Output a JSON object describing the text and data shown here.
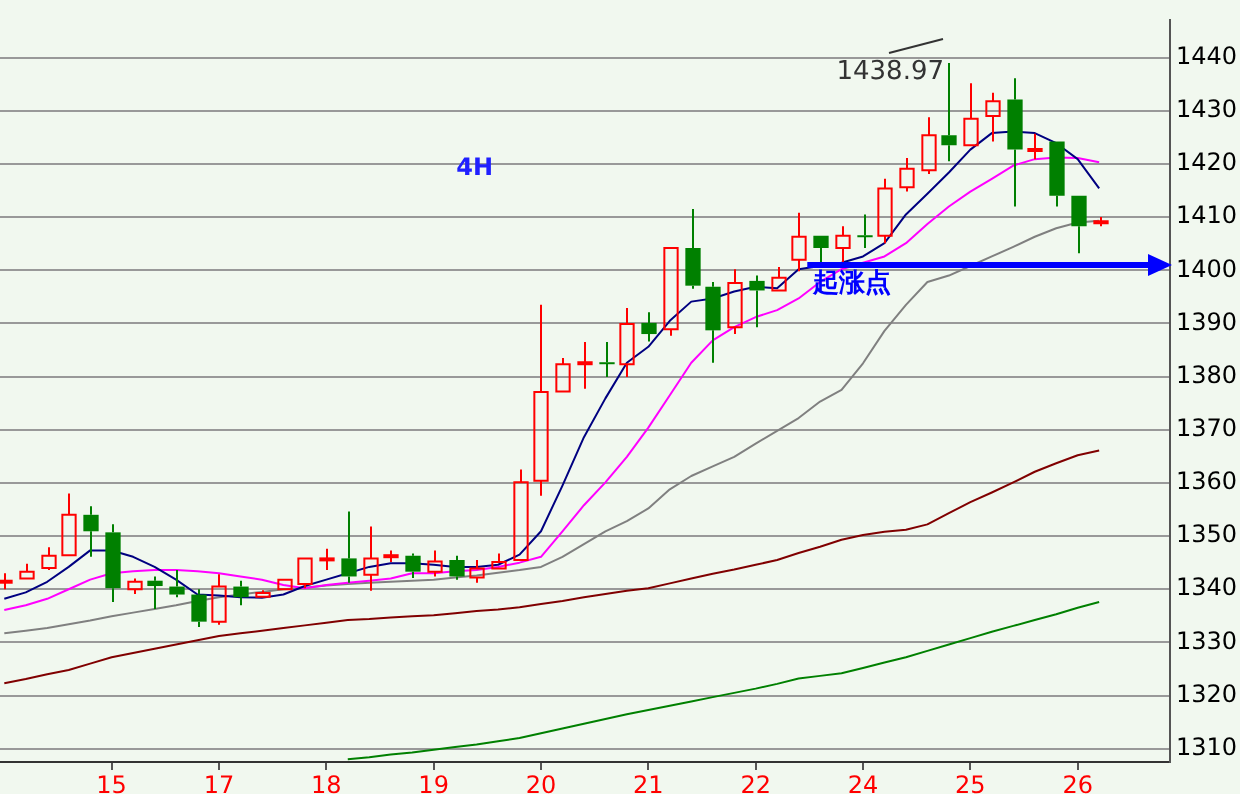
{
  "chart_data": {
    "type": "candlestick",
    "categories": [
      null,
      null,
      null,
      null,
      null,
      "15",
      null,
      null,
      null,
      null,
      "17",
      null,
      null,
      null,
      null,
      "18",
      null,
      null,
      null,
      null,
      "19",
      null,
      null,
      null,
      null,
      "20",
      null,
      null,
      null,
      null,
      "21",
      null,
      null,
      null,
      null,
      "22",
      null,
      null,
      null,
      null,
      "24",
      null,
      null,
      null,
      null,
      "25",
      null,
      null,
      null,
      null,
      "26",
      null
    ],
    "ohlc": [
      [
        1341.5,
        1343.0,
        1340.0,
        1341.6
      ],
      [
        1342.0,
        1344.8,
        1342.0,
        1343.3
      ],
      [
        1344.0,
        1347.9,
        1343.6,
        1346.3
      ],
      [
        1346.4,
        1358.0,
        1346.4,
        1354.0
      ],
      [
        1354.0,
        1355.6,
        1346.1,
        1350.9
      ],
      [
        1350.7,
        1352.2,
        1337.6,
        1340.2
      ],
      [
        1340.0,
        1342.0,
        1339.1,
        1341.4
      ],
      [
        1341.6,
        1342.4,
        1336.3,
        1340.6
      ],
      [
        1340.5,
        1343.6,
        1338.5,
        1339.0
      ],
      [
        1339.0,
        1340.0,
        1332.9,
        1333.9
      ],
      [
        1333.9,
        1342.8,
        1333.3,
        1340.5
      ],
      [
        1340.5,
        1341.6,
        1337.0,
        1338.5
      ],
      [
        1338.6,
        1339.8,
        1338.3,
        1339.3
      ],
      [
        1340.0,
        1341.8,
        1339.8,
        1341.8
      ],
      [
        1341.0,
        1345.8,
        1340.2,
        1345.8
      ],
      [
        1345.6,
        1347.6,
        1343.6,
        1345.8
      ],
      [
        1345.8,
        1354.6,
        1341.2,
        1342.4
      ],
      [
        1342.7,
        1351.8,
        1339.7,
        1345.8
      ],
      [
        1346.2,
        1347.3,
        1345.1,
        1346.4
      ],
      [
        1346.3,
        1346.7,
        1342.1,
        1343.3
      ],
      [
        1343.3,
        1347.3,
        1342.4,
        1345.2
      ],
      [
        1345.5,
        1346.3,
        1341.8,
        1342.4
      ],
      [
        1342.2,
        1345.5,
        1341.2,
        1343.9
      ],
      [
        1343.9,
        1346.7,
        1343.6,
        1345.1
      ],
      [
        1345.5,
        1362.5,
        1345.5,
        1360.1
      ],
      [
        1360.4,
        1393.5,
        1357.6,
        1377.1
      ],
      [
        1377.2,
        1383.5,
        1377.2,
        1382.3
      ],
      [
        1382.4,
        1386.5,
        1377.7,
        1382.7
      ],
      [
        1382.7,
        1386.5,
        1379.9,
        1382.4
      ],
      [
        1382.3,
        1392.9,
        1379.9,
        1389.9
      ],
      [
        1390.1,
        1392.1,
        1386.6,
        1388.0
      ],
      [
        1388.9,
        1404.2,
        1387.7,
        1404.2
      ],
      [
        1404.2,
        1411.5,
        1396.5,
        1397.1
      ],
      [
        1396.9,
        1397.8,
        1382.6,
        1388.7
      ],
      [
        1389.3,
        1400.2,
        1388.0,
        1397.6
      ],
      [
        1398.0,
        1399.0,
        1389.3,
        1396.2
      ],
      [
        1396.2,
        1400.6,
        1396.0,
        1398.6
      ],
      [
        1402.0,
        1410.8,
        1399.8,
        1406.3
      ],
      [
        1406.5,
        1406.5,
        1400.8,
        1404.2
      ],
      [
        1404.2,
        1408.3,
        1400.8,
        1406.5
      ],
      [
        1406.6,
        1410.5,
        1404.2,
        1406.4
      ],
      [
        1406.5,
        1417.2,
        1405.1,
        1415.4
      ],
      [
        1415.6,
        1421.1,
        1414.8,
        1419.1
      ],
      [
        1418.8,
        1428.8,
        1418.1,
        1425.4
      ],
      [
        1425.4,
        1438.97,
        1420.5,
        1423.5
      ],
      [
        1423.5,
        1435.2,
        1423.5,
        1428.5
      ],
      [
        1429.0,
        1433.4,
        1424.2,
        1431.8
      ],
      [
        1432.1,
        1436.1,
        1412.0,
        1422.7
      ],
      [
        1422.6,
        1425.7,
        1420.9,
        1422.8
      ],
      [
        1424.2,
        1424.2,
        1412.0,
        1414.0
      ],
      [
        1414.0,
        1414.0,
        1403.2,
        1408.3
      ],
      [
        1409.0,
        1410.0,
        1408.3,
        1409.2
      ]
    ],
    "series": [
      {
        "type": "line",
        "color": "#000080",
        "values": [
          1338.2,
          1339.4,
          1341.4,
          1344.2,
          1347.3,
          1347.3,
          1346.1,
          1344.2,
          1341.8,
          1339.0,
          1338.8,
          1338.5,
          1338.4,
          1339.0,
          1340.6,
          1341.8,
          1343.0,
          1344.2,
          1344.9,
          1344.9,
          1344.6,
          1344.2,
          1344.2,
          1344.6,
          1346.5,
          1350.9,
          1359.5,
          1368.6,
          1375.9,
          1382.6,
          1385.6,
          1390.5,
          1394.1,
          1394.7,
          1396.0,
          1396.9,
          1396.6,
          1400.2,
          1400.8,
          1401.4,
          1402.6,
          1405.1,
          1410.5,
          1414.4,
          1418.4,
          1422.7,
          1425.8,
          1426.1,
          1425.8,
          1423.9,
          1420.9,
          1415.4
        ]
      },
      {
        "type": "line",
        "color": "#ff00ff",
        "values": [
          1336.1,
          1337.0,
          1338.2,
          1340.0,
          1341.8,
          1343.0,
          1343.4,
          1343.6,
          1343.6,
          1343.4,
          1343.0,
          1342.4,
          1341.8,
          1340.8,
          1340.2,
          1340.8,
          1341.2,
          1341.6,
          1342.0,
          1343.0,
          1343.0,
          1343.4,
          1343.6,
          1344.2,
          1345.0,
          1346.1,
          1350.9,
          1355.8,
          1360.1,
          1364.9,
          1370.4,
          1376.5,
          1382.6,
          1386.8,
          1389.3,
          1391.2,
          1392.5,
          1394.7,
          1397.8,
          1400.2,
          1401.4,
          1402.6,
          1405.1,
          1408.7,
          1412.0,
          1414.8,
          1417.2,
          1419.7,
          1420.9,
          1421.2,
          1421.1,
          1420.3
        ]
      },
      {
        "type": "line",
        "color": "#808080",
        "values": [
          1331.7,
          1332.2,
          1332.7,
          1333.4,
          1334.1,
          1334.9,
          1335.6,
          1336.3,
          1337.0,
          1337.8,
          1338.5,
          1339.0,
          1339.5,
          1340.0,
          1340.3,
          1340.7,
          1341.0,
          1341.2,
          1341.4,
          1341.6,
          1341.8,
          1342.2,
          1342.6,
          1343.1,
          1343.6,
          1344.2,
          1346.1,
          1348.5,
          1350.9,
          1352.8,
          1355.2,
          1358.8,
          1361.3,
          1363.1,
          1364.9,
          1367.4,
          1369.8,
          1372.2,
          1375.3,
          1377.5,
          1382.5,
          1388.6,
          1393.5,
          1397.8,
          1399.0,
          1400.8,
          1402.6,
          1404.4,
          1406.3,
          1407.9,
          1409.0,
          1409.3
        ]
      },
      {
        "type": "line",
        "color": "#800000",
        "values": [
          1322.3,
          1323.1,
          1324.0,
          1324.8,
          1326.0,
          1327.2,
          1328.0,
          1328.8,
          1329.6,
          1330.4,
          1331.2,
          1331.7,
          1332.2,
          1332.7,
          1333.2,
          1333.7,
          1334.2,
          1334.4,
          1334.7,
          1334.9,
          1335.1,
          1335.5,
          1335.9,
          1336.2,
          1336.6,
          1337.2,
          1337.8,
          1338.5,
          1339.1,
          1339.7,
          1340.2,
          1341.1,
          1342.0,
          1342.9,
          1343.7,
          1344.6,
          1345.5,
          1346.8,
          1348.0,
          1349.3,
          1350.2,
          1350.8,
          1351.2,
          1352.2,
          1354.3,
          1356.4,
          1358.2,
          1360.1,
          1362.1,
          1363.7,
          1365.2,
          1366.1
        ]
      },
      {
        "type": "line",
        "color": "#008000",
        "values": [
          null,
          null,
          null,
          null,
          null,
          null,
          null,
          null,
          null,
          null,
          null,
          null,
          null,
          null,
          null,
          null,
          1308.0,
          1308.4,
          1308.9,
          1309.3,
          1309.8,
          1310.3,
          1310.8,
          1311.4,
          1312.0,
          1312.9,
          1313.8,
          1314.7,
          1315.6,
          1316.5,
          1317.3,
          1318.1,
          1318.9,
          1319.7,
          1320.5,
          1321.3,
          1322.2,
          1323.2,
          1323.7,
          1324.2,
          1325.2,
          1326.2,
          1327.2,
          1328.4,
          1329.6,
          1330.8,
          1332.0,
          1333.1,
          1334.2,
          1335.3,
          1336.5,
          1337.6
        ]
      }
    ],
    "ylim": [
      1307.5,
      1447
    ],
    "yticks": [
      1310,
      1320,
      1330,
      1340,
      1350,
      1360,
      1370,
      1380,
      1390,
      1400,
      1410,
      1420,
      1430,
      1440
    ],
    "grid": "y",
    "legend": false,
    "marker": "none",
    "line_style": "solid",
    "ref_lines": [
      {
        "axis": "y",
        "value": 1401,
        "label": "起涨点",
        "color": "#0000ff"
      }
    ],
    "annotations": [
      "4H",
      "1438.97"
    ]
  }
}
